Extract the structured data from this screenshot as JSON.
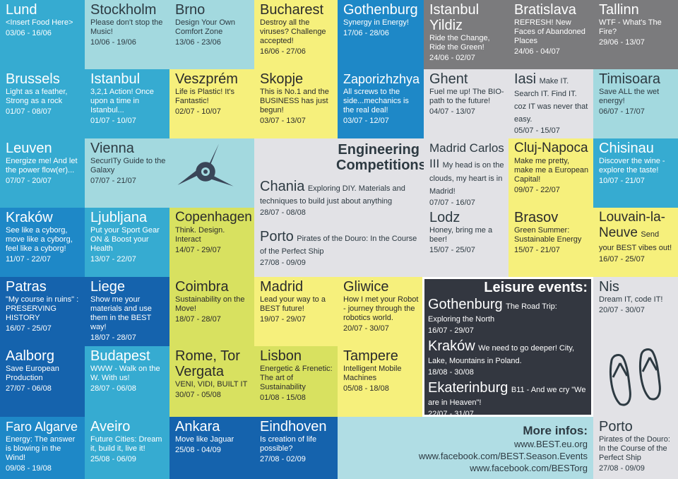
{
  "events": [
    {
      "city": "Lund",
      "desc": "<Insert Food Here>",
      "date": "03/06 - 16/06"
    },
    {
      "city": "Stockholm",
      "desc": "Please don't stop the Music!",
      "date": "10/06 - 19/06"
    },
    {
      "city": "Brno",
      "desc": "Design Your Own Comfort Zone",
      "date": "13/06 - 23/06"
    },
    {
      "city": "Bucharest",
      "desc": "Destroy all the viruses? Challenge accepted!",
      "date": "16/06 - 27/06"
    },
    {
      "city": "Gothenburg",
      "desc": "Synergy in Energy!",
      "date": "17/06 - 28/06"
    },
    {
      "city": "Istanbul Yildiz",
      "desc": "Ride the Change, Ride the Green!",
      "date": "24/06 - 02/07"
    },
    {
      "city": "Bratislava",
      "desc": "REFRESH! New Faces of Abandoned Places",
      "date": "24/06 - 04/07"
    },
    {
      "city": "Tallinn",
      "desc": "WTF - What's The Fire?",
      "date": "29/06 - 13/07"
    },
    {
      "city": "Brussels",
      "desc": "Light as a feather, Strong as a rock",
      "date": "01/07 - 08/07"
    },
    {
      "city": "Istanbul",
      "desc": "3,2,1 Action! Once upon a time in Istanbul...",
      "date": "01/07 - 10/07"
    },
    {
      "city": "Veszprém",
      "desc": "Life is Plastic! It's Fantastic!",
      "date": "02/07 - 10/07"
    },
    {
      "city": "Skopje",
      "desc": "This is No.1 and the BUSINESS has just begun!",
      "date": "03/07 - 13/07"
    },
    {
      "city": "Zaporizhzhya",
      "desc": "All screws to the side...mechanics is the real deal!",
      "date": "03/07 - 12/07"
    },
    {
      "city": "Ghent",
      "desc": "Fuel me up! The BIO-path to the future!",
      "date": "04/07 - 13/07"
    },
    {
      "city": "Iasi",
      "desc": "Make IT. Search IT. Find IT. coz IT was never that easy.",
      "date": "05/07 - 15/07"
    },
    {
      "city": "Timisoara",
      "desc": "Save ALL the wet energy!",
      "date": "06/07 - 17/07"
    },
    {
      "city": "Leuven",
      "desc": "Energize me! And let the power flow(er)...",
      "date": "07/07 - 20/07"
    },
    {
      "city": "Vienna",
      "desc": "SecurITy Guide to the Galaxy",
      "date": "07/07 - 21/07"
    },
    {
      "city": "Madrid Carlos III",
      "desc": "My head is on the clouds, my heart is in Madrid!",
      "date": "07/07 - 16/07"
    },
    {
      "city": "Cluj-Napoca",
      "desc": "Make me pretty, make me a European Capital!",
      "date": "09/07 - 22/07"
    },
    {
      "city": "Chisinau",
      "desc": "Discover the wine - explore the taste!",
      "date": "10/07 - 21/07"
    },
    {
      "city": "Kraków",
      "desc": "See like a cyborg, move like a cyborg, feel like a cyborg!",
      "date": "11/07 - 22/07"
    },
    {
      "city": "Ljubljana",
      "desc": "Put your Sport Gear ON & Boost your Health",
      "date": "13/07 - 22/07"
    },
    {
      "city": "Copenhagen",
      "desc": "Think. Design. Interact",
      "date": "14/07 - 29/07"
    },
    {
      "city": "Lodz",
      "desc": "Honey, bring me a beer!",
      "date": "15/07 - 25/07"
    },
    {
      "city": "Brasov",
      "desc": "Green Summer: Sustainable Energy",
      "date": "15/07 - 21/07"
    },
    {
      "city": "Louvain-la-Neuve",
      "desc": "Send your BEST vibes out!",
      "date": "16/07 - 25/07"
    },
    {
      "city": "Patras",
      "desc": "\"My course in ruins\" : PRESERVING HISTORY",
      "date": "16/07 - 25/07"
    },
    {
      "city": "Liege",
      "desc": "Show me your materials and use them in the BEST way!",
      "date": "18/07 - 28/07"
    },
    {
      "city": "Coimbra",
      "desc": "Sustainability on the Move!",
      "date": "18/07 - 28/07"
    },
    {
      "city": "Madrid",
      "desc": "Lead your way to a BEST future!",
      "date": "19/07 - 29/07"
    },
    {
      "city": "Gliwice",
      "desc": "How I met your Robot - journey through the robotics world.",
      "date": "20/07 - 30/07"
    },
    {
      "city": "Nis",
      "desc": "Dream IT, code IT!",
      "date": "20/07 - 30/07"
    },
    {
      "city": "Aalborg",
      "desc": "Save European Production",
      "date": "27/07 - 06/08"
    },
    {
      "city": "Budapest",
      "desc": "WWW - Walk on the W. With us!",
      "date": "28/07 - 06/08"
    },
    {
      "city": "Rome, Tor Vergata",
      "desc": "VENI, VIDI, BUILT IT",
      "date": "30/07 - 05/08"
    },
    {
      "city": "Lisbon",
      "desc": "Energetic & Frenetic: The art of Sustainability",
      "date": "01/08 - 15/08"
    },
    {
      "city": "Tampere",
      "desc": "Intelligent Mobile Machines",
      "date": "05/08 - 18/08"
    },
    {
      "city": "Faro Algarve",
      "desc": "Energy: The answer is blowing in the Wind!",
      "date": "09/08 - 19/08"
    },
    {
      "city": "Aveiro",
      "desc": "Future Cities: Dream it, build it, live it!",
      "date": "25/08 - 06/09"
    },
    {
      "city": "Ankara",
      "desc": "Move like Jaguar",
      "date": "25/08 - 04/09"
    },
    {
      "city": "Eindhoven",
      "desc": "Is creation of life possible?",
      "date": "27/08 - 02/09"
    },
    {
      "city": "Porto",
      "desc": "Pirates of the Douro: In the Course of the Perfect Ship",
      "date": "27/08 - 09/09"
    }
  ],
  "competitions": {
    "title": "Engineering Competitions:",
    "items": [
      {
        "city": "Chania",
        "desc": "Exploring DIY. Materials and techniques to build just about anything",
        "date": "28/07 - 08/08"
      },
      {
        "city": "Porto",
        "desc": "Pirates of the Douro: In the Course of the Perfect Ship",
        "date": "27/08 - 09/09"
      }
    ]
  },
  "leisure": {
    "title": "Leisure events:",
    "items": [
      {
        "city": "Gothenburg",
        "desc": "The Road Trip: Exploring the North",
        "date": "16/07 - 29/07"
      },
      {
        "city": "Kraków",
        "desc": "We need to go deeper! City, Lake, Mountains in Poland.",
        "date": "18/08 - 30/08"
      },
      {
        "city": "Ekaterinburg",
        "desc": "B11 - And we cry \"We are in Heaven\"!",
        "date": "22/07 - 31/07"
      }
    ]
  },
  "more": {
    "title": "More infos:",
    "links": [
      "www.BEST.eu.org",
      "www.facebook.com/BEST.Season.Events",
      "www.facebook.com/BESTorg"
    ]
  },
  "icons": {
    "logo": "best-triskelion-logo-icon",
    "flipflops": "flip-flops-icon"
  },
  "colors": {
    "sky": "#36abd1",
    "blue": "#1e88c7",
    "navy": "#1563ad",
    "teal": "#a3d9df",
    "yellow": "#f6f07c",
    "grey": "#e2e2e6",
    "darkgrey": "#7b7b7d",
    "green": "#d8e160",
    "leisure": "#333740"
  }
}
